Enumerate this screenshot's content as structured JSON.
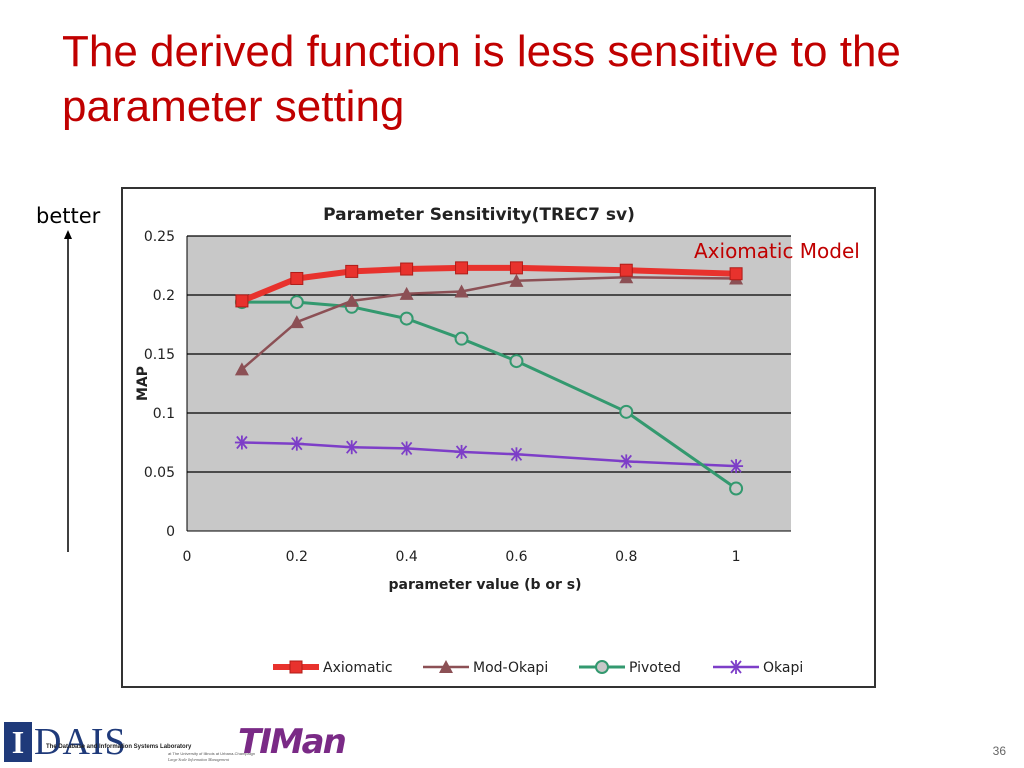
{
  "slide": {
    "title": "The derived function is less sensitive to the parameter setting",
    "better_label": "better",
    "annotation": "Axiomatic Model",
    "page_number": "36"
  },
  "footer": {
    "dais_letter": "I",
    "dais_word": "DAIS",
    "dais_subtitle": "The Database and Information Systems Laboratory",
    "dais_subtitle2": "at The University of Illinois at Urbana-Champaign",
    "dais_subtitle3": "Large Scale Information Management",
    "timan": "TIMan"
  },
  "colors": {
    "title": "#c00000",
    "axiomatic": "#e8322d",
    "mod_okapi": "#8c5055",
    "pivoted": "#33996f",
    "okapi": "#7d3ec8",
    "plot_bg": "#c8c8c8"
  },
  "chart_data": {
    "type": "line",
    "title": "Parameter Sensitivity(TREC7 sv)",
    "xlabel": "parameter value (b or s)",
    "ylabel": "MAP",
    "xlim": [
      0,
      1.1
    ],
    "ylim": [
      0,
      0.25
    ],
    "x_ticks": [
      0,
      0.2,
      0.4,
      0.6,
      0.8,
      1
    ],
    "x_tick_labels": [
      "0",
      "0.2",
      "0.4",
      "0.6",
      "0.8",
      "1"
    ],
    "y_ticks": [
      0,
      0.05,
      0.1,
      0.15,
      0.2,
      0.25
    ],
    "y_tick_labels": [
      "0",
      "0.05",
      "0.1",
      "0.15",
      "0.2",
      "0.25"
    ],
    "grid": "horizontal",
    "legend_position": "bottom",
    "series": [
      {
        "name": "Axiomatic",
        "marker": "square",
        "points": [
          [
            0.1,
            0.195
          ],
          [
            0.2,
            0.214
          ],
          [
            0.3,
            0.22
          ],
          [
            0.4,
            0.222
          ],
          [
            0.5,
            0.223
          ],
          [
            0.6,
            0.223
          ],
          [
            0.8,
            0.221
          ],
          [
            1,
            0.218
          ]
        ]
      },
      {
        "name": "Mod-Okapi",
        "marker": "triangle",
        "points": [
          [
            0.1,
            0.137
          ],
          [
            0.2,
            0.177
          ],
          [
            0.3,
            0.195
          ],
          [
            0.4,
            0.201
          ],
          [
            0.5,
            0.203
          ],
          [
            0.6,
            0.212
          ],
          [
            0.8,
            0.215
          ],
          [
            1,
            0.214
          ]
        ]
      },
      {
        "name": "Pivoted",
        "marker": "circle",
        "points": [
          [
            0.1,
            0.194
          ],
          [
            0.2,
            0.194
          ],
          [
            0.3,
            0.19
          ],
          [
            0.4,
            0.18
          ],
          [
            0.5,
            0.163
          ],
          [
            0.6,
            0.144
          ],
          [
            0.8,
            0.101
          ],
          [
            1,
            0.036
          ]
        ]
      },
      {
        "name": "Okapi",
        "marker": "asterisk",
        "points": [
          [
            0.1,
            0.075
          ],
          [
            0.2,
            0.074
          ],
          [
            0.3,
            0.071
          ],
          [
            0.4,
            0.07
          ],
          [
            0.5,
            0.067
          ],
          [
            0.6,
            0.065
          ],
          [
            0.8,
            0.059
          ],
          [
            1,
            0.055
          ]
        ]
      }
    ]
  }
}
